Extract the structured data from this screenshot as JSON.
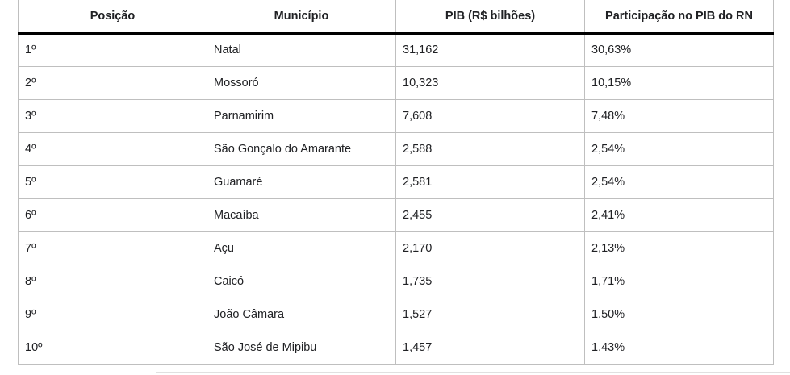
{
  "table": {
    "headers": [
      "Posição",
      "Município",
      "PIB (R$ bilhões)",
      "Participação no PIB do RN"
    ],
    "rows": [
      [
        "1º",
        "Natal",
        "31,162",
        "30,63%"
      ],
      [
        "2º",
        "Mossoró",
        "10,323",
        "10,15%"
      ],
      [
        "3º",
        "Parnamirim",
        "7,608",
        "7,48%"
      ],
      [
        "4º",
        "São Gonçalo do Amarante",
        "2,588",
        "2,54%"
      ],
      [
        "5º",
        "Guamaré",
        "2,581",
        "2,54%"
      ],
      [
        "6º",
        "Macaíba",
        "2,455",
        "2,41%"
      ],
      [
        "7º",
        "Açu",
        "2,170",
        "2,13%"
      ],
      [
        "8º",
        "Caicó",
        "1,735",
        "1,71%"
      ],
      [
        "9º",
        "João Câmara",
        "1,527",
        "1,50%"
      ],
      [
        "10º",
        "São José de Mipibu",
        "1,457",
        "1,43%"
      ]
    ]
  },
  "colors": {
    "border": "#bfbfbf",
    "header_rule": "#000000",
    "text": "#202124"
  }
}
